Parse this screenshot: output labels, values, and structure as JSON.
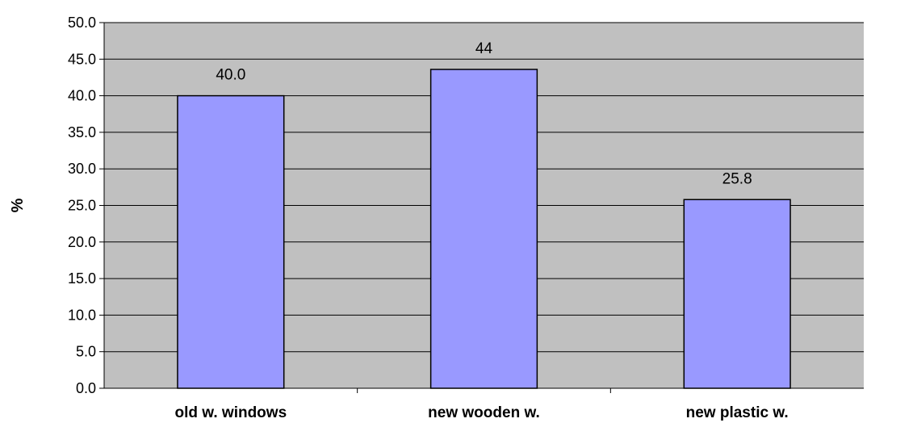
{
  "chart_data": {
    "type": "bar",
    "categories": [
      "old w. windows",
      "new wooden w.",
      "new plastic w."
    ],
    "values": [
      40.0,
      43.6,
      25.8
    ],
    "data_labels": [
      "40.0",
      "44",
      "25.8"
    ],
    "title": "",
    "xlabel": "",
    "ylabel": "%",
    "ylim": [
      0,
      50
    ],
    "yticks": [
      "0.0",
      "5.0",
      "10.0",
      "15.0",
      "20.0",
      "25.0",
      "30.0",
      "35.0",
      "40.0",
      "45.0",
      "50.0"
    ],
    "grid": true,
    "legend": "none",
    "colors": {
      "plot_background": "#c0c0c0",
      "bar_fill": "#9999ff",
      "bar_stroke": "#000000",
      "gridline": "#000000"
    }
  }
}
